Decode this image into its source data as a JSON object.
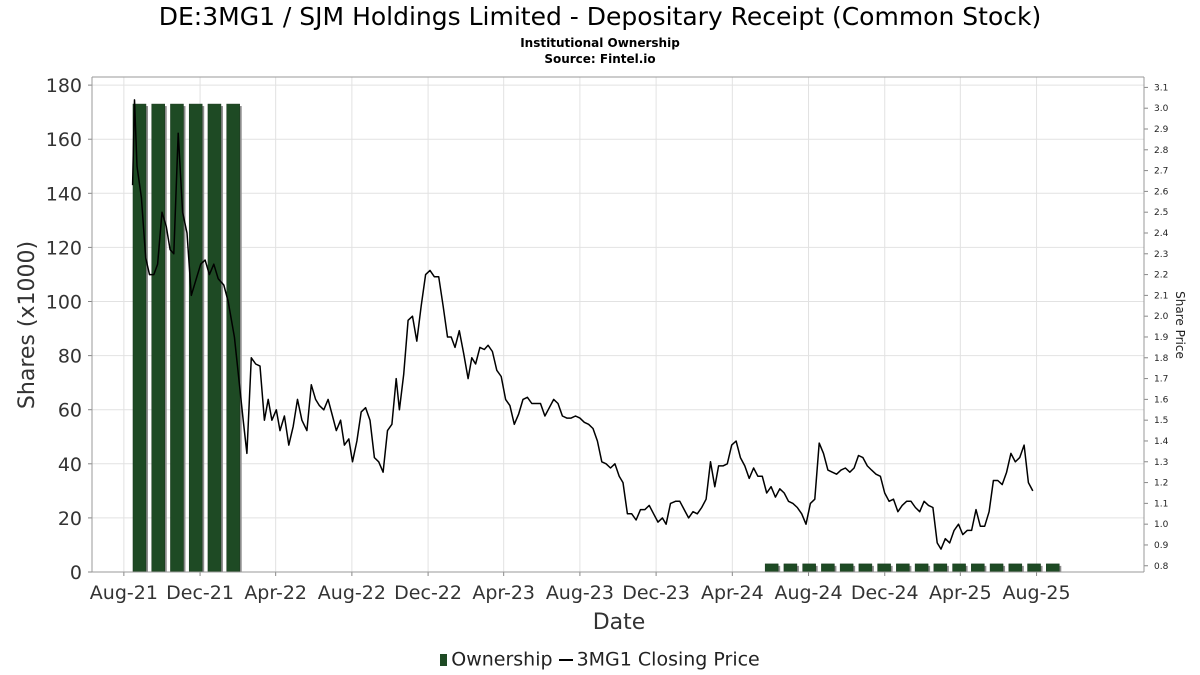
{
  "chart_data": {
    "type": "bar",
    "title": "DE:3MG1 / SJM Holdings Limited - Depositary Receipt (Common Stock)",
    "subtitle": "Institutional Ownership",
    "source": "Source: Fintel.io",
    "xlabel": "Date",
    "ylabel": "Shares (x1000)",
    "y2label": "Share Price",
    "ylim": [
      0,
      183
    ],
    "y2lim": [
      0.77,
      3.15
    ],
    "xlim": [
      "2021-06-11",
      "2026-01-20"
    ],
    "x_ticks": [
      {
        "label": "Aug-21",
        "date": "2021-08-01"
      },
      {
        "label": "Dec-21",
        "date": "2021-12-01"
      },
      {
        "label": "Apr-22",
        "date": "2022-04-01"
      },
      {
        "label": "Aug-22",
        "date": "2022-08-01"
      },
      {
        "label": "Dec-22",
        "date": "2022-12-01"
      },
      {
        "label": "Apr-23",
        "date": "2023-04-01"
      },
      {
        "label": "Aug-23",
        "date": "2023-08-01"
      },
      {
        "label": "Dec-23",
        "date": "2023-12-01"
      },
      {
        "label": "Apr-24",
        "date": "2024-04-01"
      },
      {
        "label": "Aug-24",
        "date": "2024-08-01"
      },
      {
        "label": "Dec-24",
        "date": "2024-12-01"
      },
      {
        "label": "Apr-25",
        "date": "2025-04-01"
      },
      {
        "label": "Aug-25",
        "date": "2025-08-01"
      }
    ],
    "y_ticks": [
      0,
      20,
      40,
      60,
      80,
      100,
      120,
      140,
      160,
      180
    ],
    "y2_ticks": [
      0.8,
      0.9,
      1.0,
      1.1,
      1.2,
      1.3,
      1.4,
      1.5,
      1.6,
      1.7,
      1.8,
      1.9,
      2.0,
      2.1,
      2.2,
      2.3,
      2.4,
      2.5,
      2.6,
      2.7,
      2.8,
      2.9,
      3.0,
      3.1
    ],
    "grid": true,
    "legend_position": "bottom",
    "series": [
      {
        "name": "Ownership",
        "kind": "bar",
        "axis": "left",
        "color": "#1e4a24",
        "points": [
          {
            "date": "2021-08-26",
            "value": 173
          },
          {
            "date": "2021-09-25",
            "value": 173
          },
          {
            "date": "2021-10-25",
            "value": 173
          },
          {
            "date": "2021-11-24",
            "value": 173
          },
          {
            "date": "2021-12-24",
            "value": 173
          },
          {
            "date": "2022-01-23",
            "value": 173
          },
          {
            "date": "2024-06-03",
            "value": 3
          },
          {
            "date": "2024-07-03",
            "value": 3
          },
          {
            "date": "2024-08-02",
            "value": 3
          },
          {
            "date": "2024-09-01",
            "value": 3
          },
          {
            "date": "2024-10-01",
            "value": 3
          },
          {
            "date": "2024-10-31",
            "value": 3
          },
          {
            "date": "2024-11-30",
            "value": 3
          },
          {
            "date": "2024-12-30",
            "value": 3
          },
          {
            "date": "2025-01-29",
            "value": 3
          },
          {
            "date": "2025-02-28",
            "value": 3
          },
          {
            "date": "2025-03-30",
            "value": 3
          },
          {
            "date": "2025-04-29",
            "value": 3
          },
          {
            "date": "2025-05-29",
            "value": 3
          },
          {
            "date": "2025-06-28",
            "value": 3
          },
          {
            "date": "2025-07-28",
            "value": 3
          },
          {
            "date": "2025-08-27",
            "value": 3
          }
        ]
      },
      {
        "name": "3MG1 Closing Price",
        "kind": "line",
        "axis": "right",
        "color": "#000000",
        "points": [
          [
            "2021-08-15",
            2.63
          ],
          [
            "2021-08-18",
            3.04
          ],
          [
            "2021-08-22",
            2.72
          ],
          [
            "2021-08-29",
            2.57
          ],
          [
            "2021-09-05",
            2.28
          ],
          [
            "2021-09-11",
            2.2
          ],
          [
            "2021-09-18",
            2.2
          ],
          [
            "2021-09-24",
            2.25
          ],
          [
            "2021-10-01",
            2.5
          ],
          [
            "2021-10-08",
            2.43
          ],
          [
            "2021-10-14",
            2.32
          ],
          [
            "2021-10-20",
            2.3
          ],
          [
            "2021-10-27",
            2.88
          ],
          [
            "2021-11-03",
            2.5
          ],
          [
            "2021-11-10",
            2.4
          ],
          [
            "2021-11-17",
            2.1
          ],
          [
            "2021-11-25",
            2.18
          ],
          [
            "2021-12-02",
            2.25
          ],
          [
            "2021-12-09",
            2.27
          ],
          [
            "2021-12-16",
            2.2
          ],
          [
            "2021-12-23",
            2.25
          ],
          [
            "2021-12-30",
            2.18
          ],
          [
            "2022-01-08",
            2.15
          ],
          [
            "2022-01-15",
            2.07
          ],
          [
            "2022-01-25",
            1.9
          ],
          [
            "2022-02-01",
            1.7
          ],
          [
            "2022-02-08",
            1.5
          ],
          [
            "2022-02-14",
            1.34
          ],
          [
            "2022-02-21",
            1.8
          ],
          [
            "2022-02-28",
            1.77
          ],
          [
            "2022-03-07",
            1.76
          ],
          [
            "2022-03-14",
            1.5
          ],
          [
            "2022-03-20",
            1.6
          ],
          [
            "2022-03-26",
            1.5
          ],
          [
            "2022-04-02",
            1.55
          ],
          [
            "2022-04-08",
            1.45
          ],
          [
            "2022-04-15",
            1.52
          ],
          [
            "2022-04-22",
            1.38
          ],
          [
            "2022-04-29",
            1.47
          ],
          [
            "2022-05-06",
            1.6
          ],
          [
            "2022-05-13",
            1.5
          ],
          [
            "2022-05-21",
            1.45
          ],
          [
            "2022-05-28",
            1.67
          ],
          [
            "2022-06-04",
            1.6
          ],
          [
            "2022-06-10",
            1.57
          ],
          [
            "2022-06-17",
            1.55
          ],
          [
            "2022-06-24",
            1.6
          ],
          [
            "2022-07-01",
            1.52
          ],
          [
            "2022-07-07",
            1.45
          ],
          [
            "2022-07-14",
            1.5
          ],
          [
            "2022-07-20",
            1.38
          ],
          [
            "2022-07-27",
            1.41
          ],
          [
            "2022-08-02",
            1.3
          ],
          [
            "2022-08-09",
            1.4
          ],
          [
            "2022-08-16",
            1.54
          ],
          [
            "2022-08-23",
            1.56
          ],
          [
            "2022-08-30",
            1.5
          ],
          [
            "2022-09-06",
            1.32
          ],
          [
            "2022-09-13",
            1.3
          ],
          [
            "2022-09-20",
            1.25
          ],
          [
            "2022-09-27",
            1.45
          ],
          [
            "2022-10-04",
            1.48
          ],
          [
            "2022-10-11",
            1.7
          ],
          [
            "2022-10-16",
            1.55
          ],
          [
            "2022-10-23",
            1.72
          ],
          [
            "2022-10-30",
            1.98
          ],
          [
            "2022-11-06",
            2.0
          ],
          [
            "2022-11-13",
            1.88
          ],
          [
            "2022-11-20",
            2.05
          ],
          [
            "2022-11-27",
            2.2
          ],
          [
            "2022-12-04",
            2.22
          ],
          [
            "2022-12-11",
            2.19
          ],
          [
            "2022-12-18",
            2.19
          ],
          [
            "2022-12-25",
            2.05
          ],
          [
            "2023-01-01",
            1.9
          ],
          [
            "2023-01-07",
            1.9
          ],
          [
            "2023-01-13",
            1.85
          ],
          [
            "2023-01-20",
            1.93
          ],
          [
            "2023-01-27",
            1.82
          ],
          [
            "2023-02-03",
            1.7
          ],
          [
            "2023-02-09",
            1.8
          ],
          [
            "2023-02-15",
            1.77
          ],
          [
            "2023-02-22",
            1.85
          ],
          [
            "2023-03-01",
            1.84
          ],
          [
            "2023-03-07",
            1.86
          ],
          [
            "2023-03-14",
            1.83
          ],
          [
            "2023-03-21",
            1.74
          ],
          [
            "2023-03-28",
            1.71
          ],
          [
            "2023-04-04",
            1.6
          ],
          [
            "2023-04-11",
            1.57
          ],
          [
            "2023-04-18",
            1.48
          ],
          [
            "2023-04-25",
            1.53
          ],
          [
            "2023-05-02",
            1.6
          ],
          [
            "2023-05-09",
            1.61
          ],
          [
            "2023-05-16",
            1.58
          ],
          [
            "2023-05-23",
            1.58
          ],
          [
            "2023-05-30",
            1.58
          ],
          [
            "2023-06-06",
            1.52
          ],
          [
            "2023-06-13",
            1.56
          ],
          [
            "2023-06-20",
            1.6
          ],
          [
            "2023-06-27",
            1.58
          ],
          [
            "2023-07-04",
            1.52
          ],
          [
            "2023-07-11",
            1.51
          ],
          [
            "2023-07-18",
            1.51
          ],
          [
            "2023-07-25",
            1.52
          ],
          [
            "2023-08-01",
            1.51
          ],
          [
            "2023-08-08",
            1.49
          ],
          [
            "2023-08-15",
            1.48
          ],
          [
            "2023-08-22",
            1.46
          ],
          [
            "2023-08-29",
            1.4
          ],
          [
            "2023-09-05",
            1.3
          ],
          [
            "2023-09-12",
            1.29
          ],
          [
            "2023-09-19",
            1.27
          ],
          [
            "2023-09-26",
            1.29
          ],
          [
            "2023-10-03",
            1.23
          ],
          [
            "2023-10-09",
            1.2
          ],
          [
            "2023-10-16",
            1.05
          ],
          [
            "2023-10-23",
            1.05
          ],
          [
            "2023-10-30",
            1.02
          ],
          [
            "2023-11-06",
            1.07
          ],
          [
            "2023-11-13",
            1.07
          ],
          [
            "2023-11-20",
            1.09
          ],
          [
            "2023-11-27",
            1.05
          ],
          [
            "2023-12-04",
            1.01
          ],
          [
            "2023-12-11",
            1.03
          ],
          [
            "2023-12-17",
            1.0
          ],
          [
            "2023-12-24",
            1.1
          ],
          [
            "2024-01-01",
            1.11
          ],
          [
            "2024-01-08",
            1.11
          ],
          [
            "2024-01-15",
            1.07
          ],
          [
            "2024-01-22",
            1.03
          ],
          [
            "2024-01-29",
            1.06
          ],
          [
            "2024-02-05",
            1.05
          ],
          [
            "2024-02-12",
            1.08
          ],
          [
            "2024-02-19",
            1.12
          ],
          [
            "2024-02-26",
            1.3
          ],
          [
            "2024-03-04",
            1.18
          ],
          [
            "2024-03-10",
            1.28
          ],
          [
            "2024-03-17",
            1.28
          ],
          [
            "2024-03-24",
            1.29
          ],
          [
            "2024-03-31",
            1.38
          ],
          [
            "2024-04-07",
            1.4
          ],
          [
            "2024-04-14",
            1.32
          ],
          [
            "2024-04-21",
            1.28
          ],
          [
            "2024-04-28",
            1.22
          ],
          [
            "2024-05-05",
            1.27
          ],
          [
            "2024-05-12",
            1.23
          ],
          [
            "2024-05-19",
            1.23
          ],
          [
            "2024-05-26",
            1.15
          ],
          [
            "2024-06-02",
            1.18
          ],
          [
            "2024-06-09",
            1.13
          ],
          [
            "2024-06-16",
            1.17
          ],
          [
            "2024-06-23",
            1.15
          ],
          [
            "2024-06-30",
            1.11
          ],
          [
            "2024-07-07",
            1.1
          ],
          [
            "2024-07-14",
            1.08
          ],
          [
            "2024-07-21",
            1.05
          ],
          [
            "2024-07-28",
            1.0
          ],
          [
            "2024-08-04",
            1.1
          ],
          [
            "2024-08-11",
            1.12
          ],
          [
            "2024-08-18",
            1.39
          ],
          [
            "2024-08-25",
            1.34
          ],
          [
            "2024-09-01",
            1.26
          ],
          [
            "2024-09-08",
            1.25
          ],
          [
            "2024-09-15",
            1.24
          ],
          [
            "2024-09-22",
            1.26
          ],
          [
            "2024-09-29",
            1.27
          ],
          [
            "2024-10-06",
            1.25
          ],
          [
            "2024-10-13",
            1.27
          ],
          [
            "2024-10-20",
            1.33
          ],
          [
            "2024-10-27",
            1.32
          ],
          [
            "2024-11-03",
            1.28
          ],
          [
            "2024-11-10",
            1.26
          ],
          [
            "2024-11-17",
            1.24
          ],
          [
            "2024-11-24",
            1.23
          ],
          [
            "2024-12-01",
            1.15
          ],
          [
            "2024-12-08",
            1.11
          ],
          [
            "2024-12-15",
            1.12
          ],
          [
            "2024-12-22",
            1.06
          ],
          [
            "2024-12-29",
            1.09
          ],
          [
            "2025-01-05",
            1.11
          ],
          [
            "2025-01-12",
            1.11
          ],
          [
            "2025-01-19",
            1.08
          ],
          [
            "2025-01-26",
            1.06
          ],
          [
            "2025-02-02",
            1.11
          ],
          [
            "2025-02-09",
            1.09
          ],
          [
            "2025-02-16",
            1.08
          ],
          [
            "2025-02-23",
            0.91
          ],
          [
            "2025-03-01",
            0.88
          ],
          [
            "2025-03-08",
            0.93
          ],
          [
            "2025-03-15",
            0.91
          ],
          [
            "2025-03-22",
            0.97
          ],
          [
            "2025-03-29",
            1.0
          ],
          [
            "2025-04-05",
            0.95
          ],
          [
            "2025-04-12",
            0.97
          ],
          [
            "2025-04-19",
            0.97
          ],
          [
            "2025-04-26",
            1.07
          ],
          [
            "2025-05-03",
            0.99
          ],
          [
            "2025-05-10",
            0.99
          ],
          [
            "2025-05-17",
            1.06
          ],
          [
            "2025-05-24",
            1.21
          ],
          [
            "2025-05-31",
            1.21
          ],
          [
            "2025-06-07",
            1.19
          ],
          [
            "2025-06-14",
            1.25
          ],
          [
            "2025-06-21",
            1.34
          ],
          [
            "2025-06-28",
            1.3
          ],
          [
            "2025-07-05",
            1.32
          ],
          [
            "2025-07-12",
            1.38
          ],
          [
            "2025-07-19",
            1.2
          ],
          [
            "2025-07-26",
            1.16
          ]
        ]
      }
    ]
  },
  "legend": {
    "ownership_label": "Ownership",
    "price_label": "3MG1 Closing Price"
  }
}
